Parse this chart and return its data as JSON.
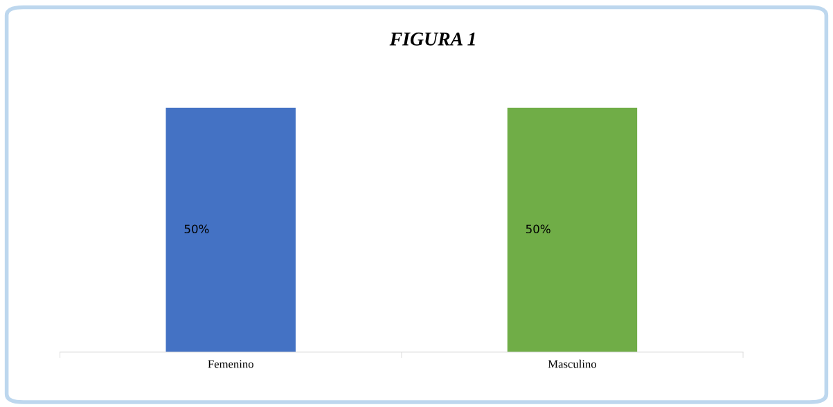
{
  "chart_data": {
    "type": "bar",
    "title": "FIGURA 1",
    "categories": [
      "Femenino",
      "Masculino"
    ],
    "values": [
      50,
      50
    ],
    "value_labels": [
      "50%",
      "50%"
    ],
    "colors": [
      "#4472c4",
      "#70ad47"
    ],
    "grid": false,
    "legend": false
  }
}
